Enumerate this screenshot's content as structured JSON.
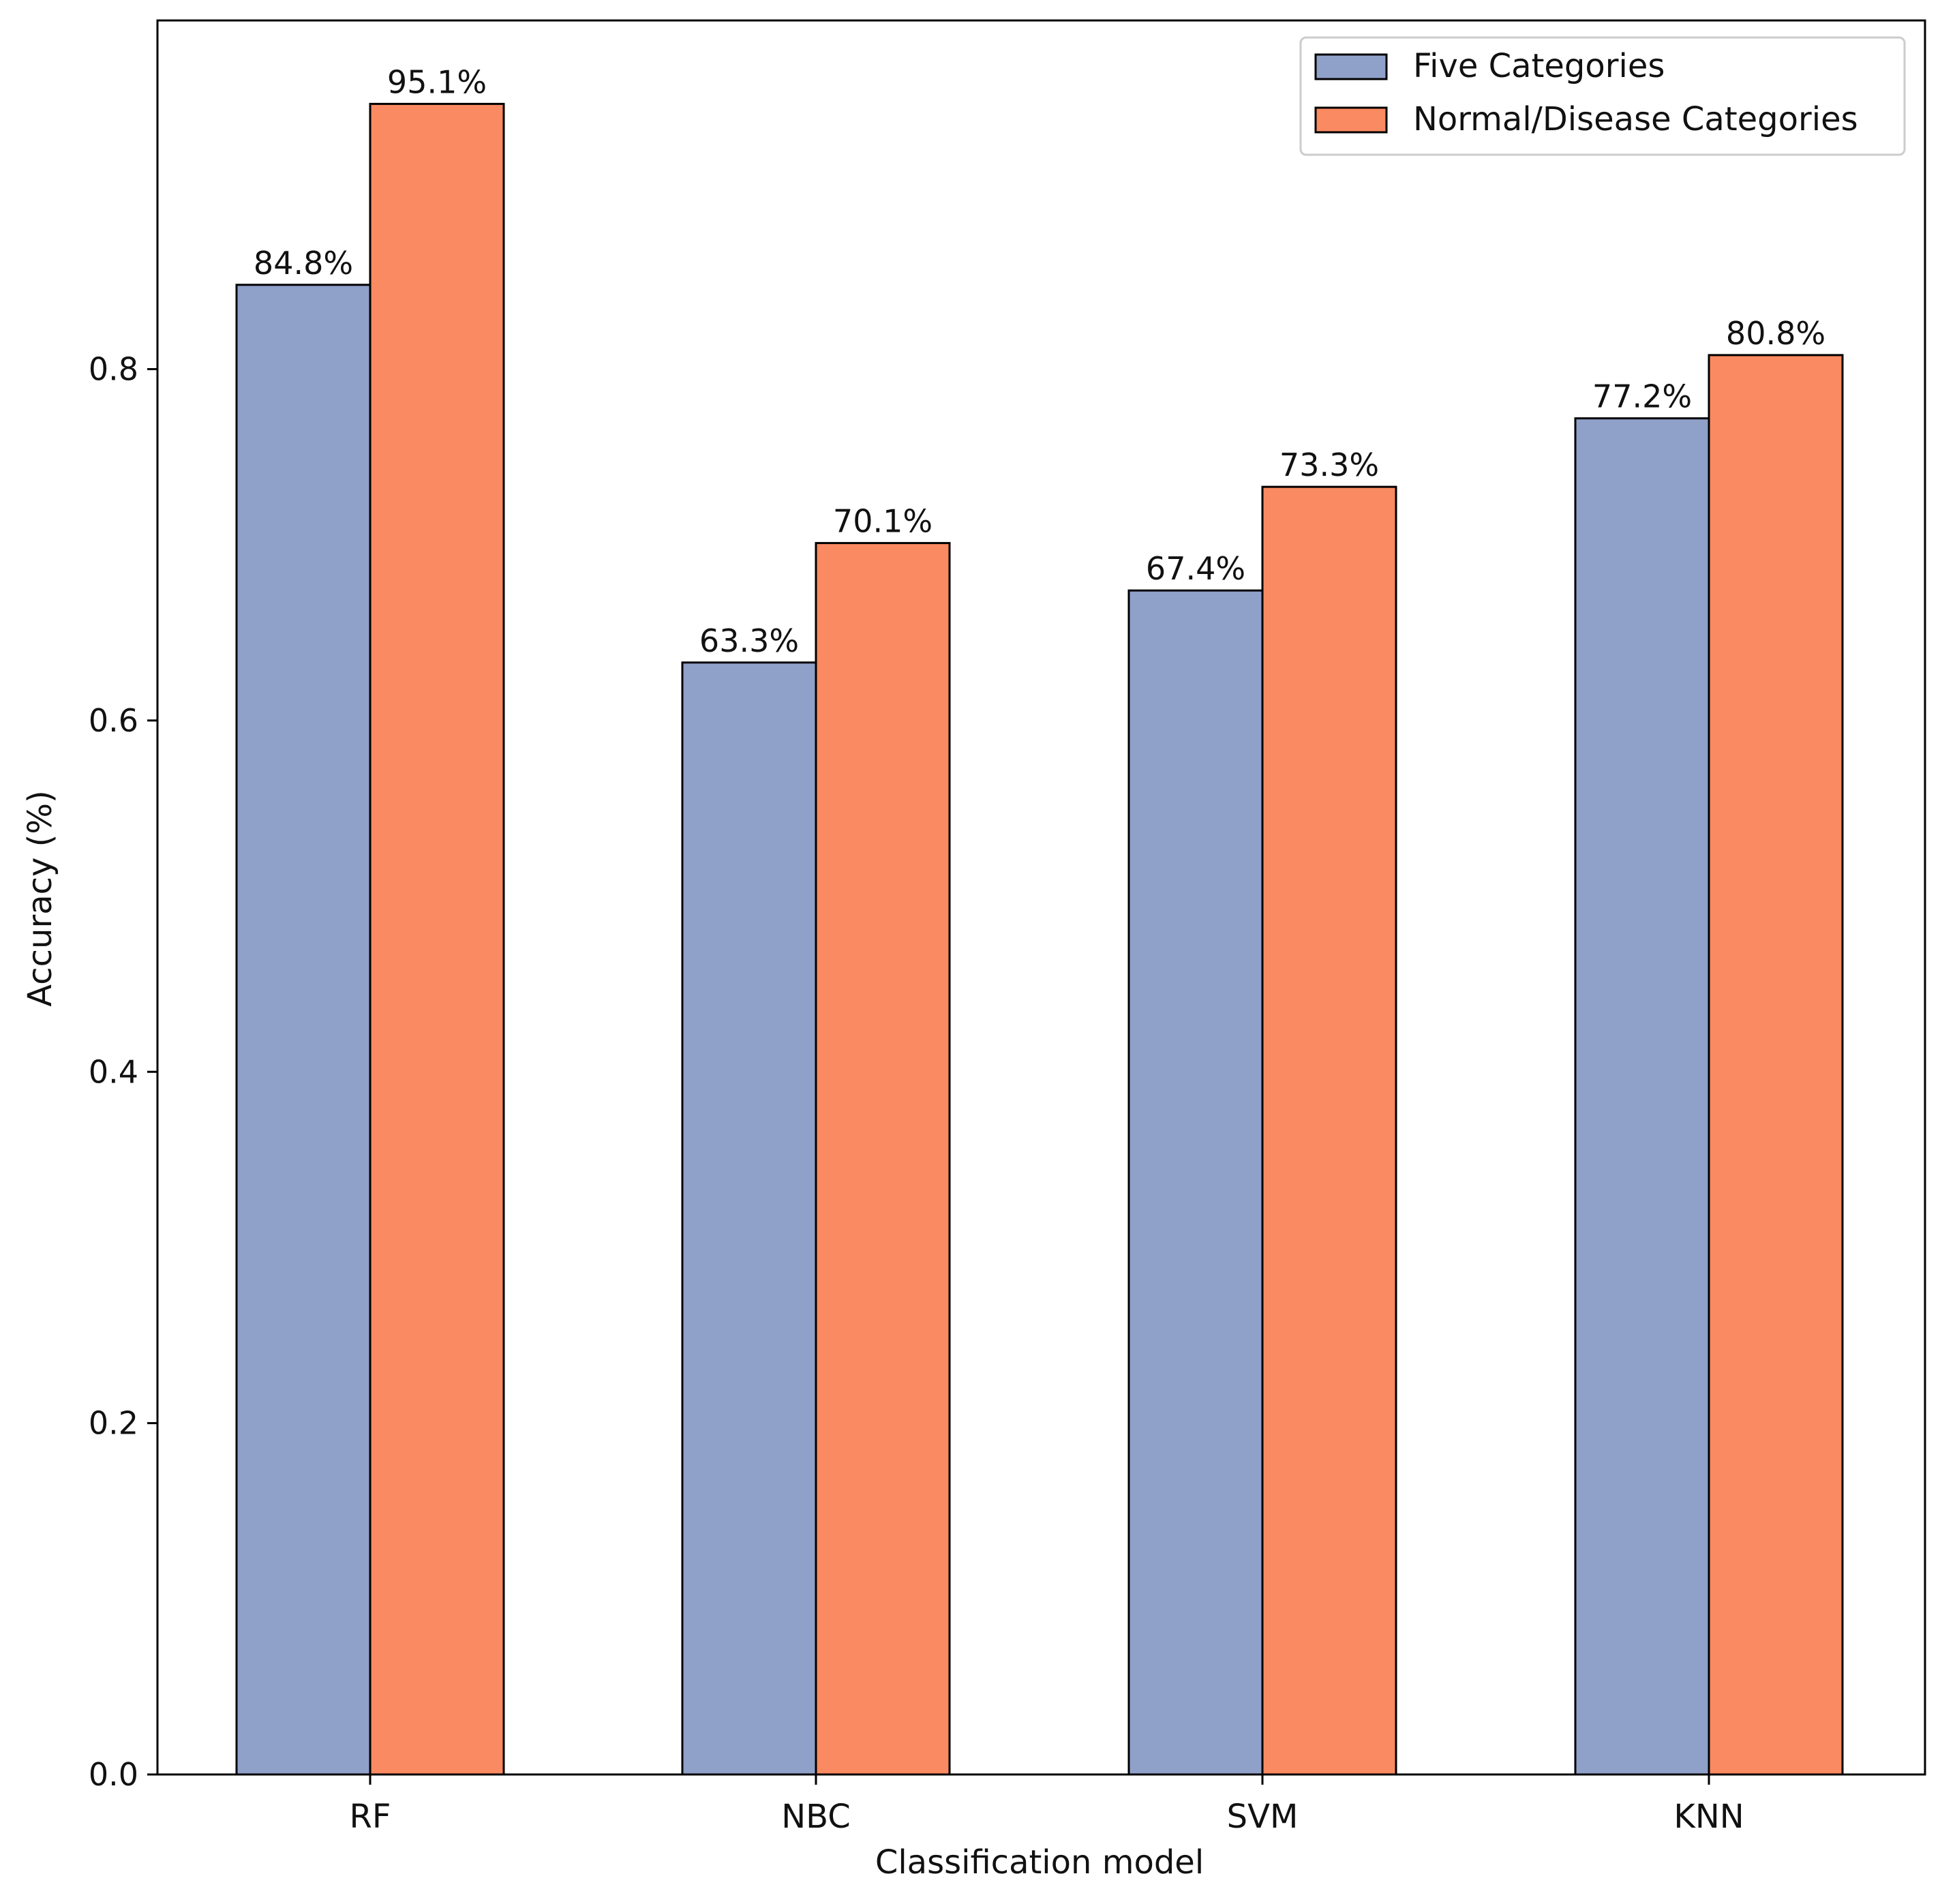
{
  "chart_data": {
    "type": "bar",
    "title": "",
    "xlabel": "Classification model",
    "ylabel": "Accuracy (%)",
    "categories": [
      "RF",
      "NBC",
      "SVM",
      "KNN"
    ],
    "ylim": [
      0,
      0.9985
    ],
    "yticks": [
      0.0,
      0.2,
      0.4,
      0.6,
      0.8
    ],
    "ytick_labels": [
      "0.0",
      "0.2",
      "0.4",
      "0.6",
      "0.8"
    ],
    "grid": false,
    "legend_position": "top-right",
    "series": [
      {
        "name": "Five Categories",
        "color": "#8fa0c9",
        "values": [
          0.848,
          0.633,
          0.674,
          0.772
        ],
        "labels": [
          "84.8%",
          "63.3%",
          "67.4%",
          "77.2%"
        ]
      },
      {
        "name": "Normal/Disease Categories",
        "color": "#fa8a61",
        "values": [
          0.951,
          0.701,
          0.733,
          0.808
        ],
        "labels": [
          "95.1%",
          "70.1%",
          "73.3%",
          "80.8%"
        ]
      }
    ]
  }
}
